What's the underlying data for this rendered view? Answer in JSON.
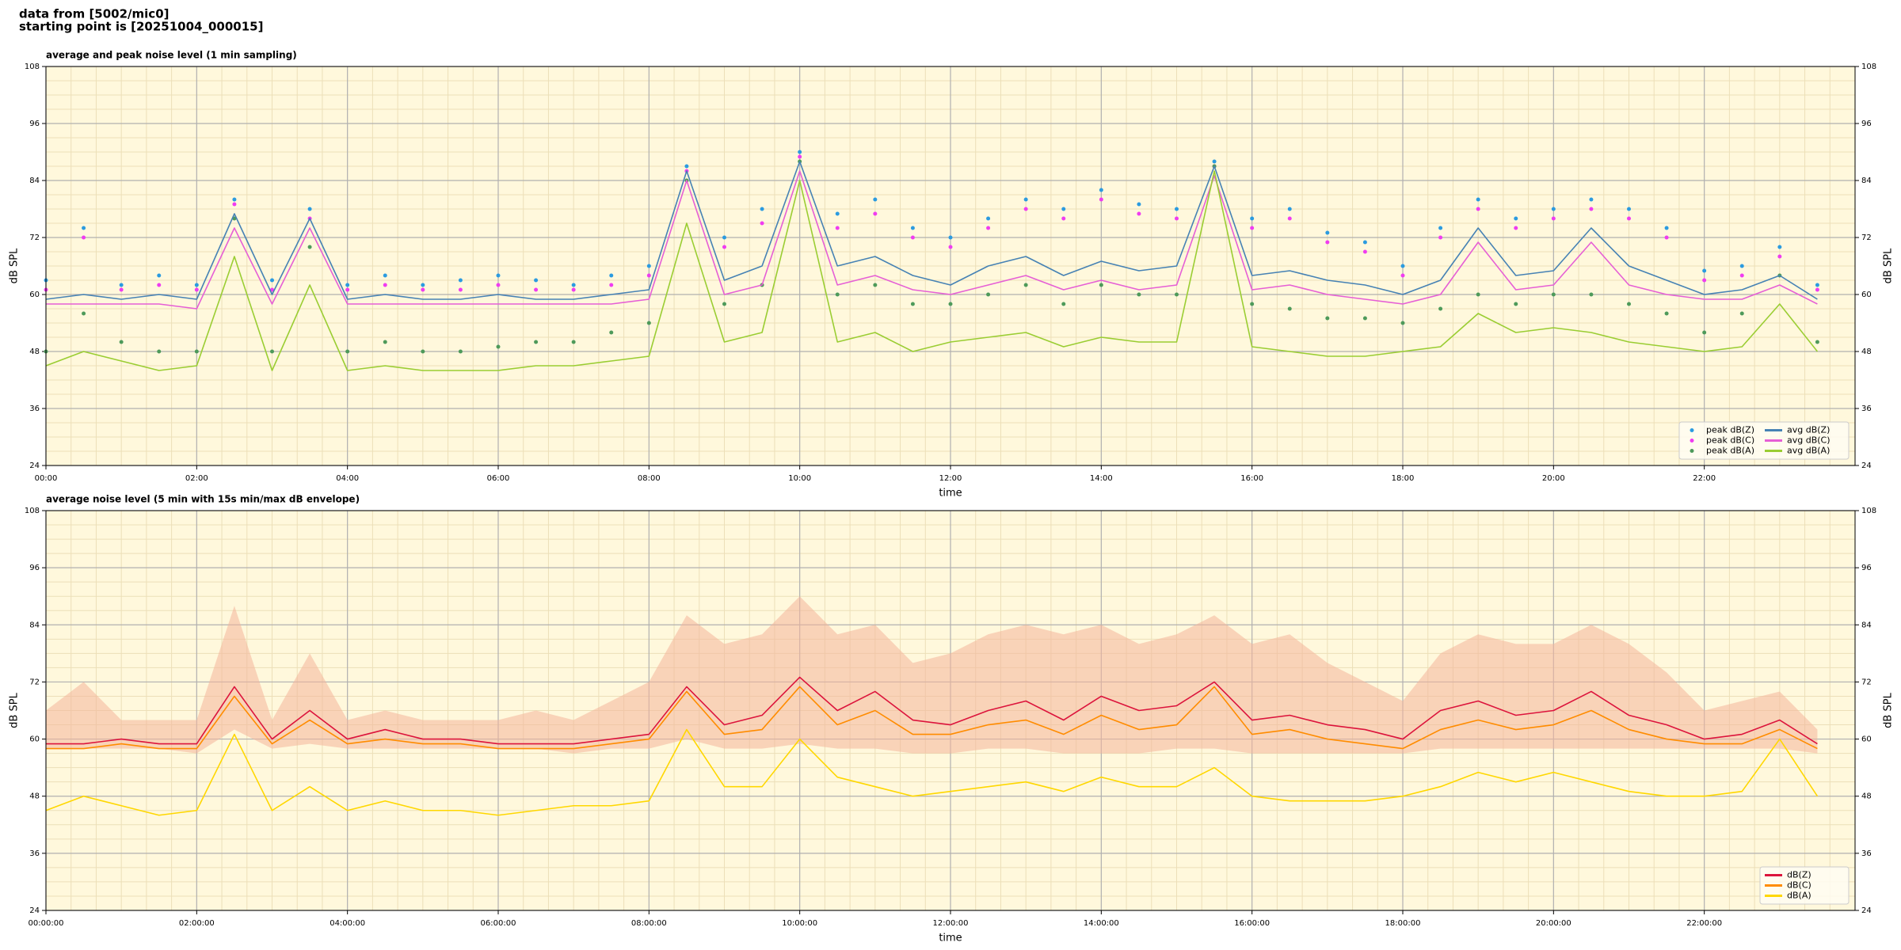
{
  "title": [
    "data from [5002/mic0]",
    "starting point is [20251004_000015]"
  ],
  "chart_data": [
    {
      "type": "line",
      "title": "average and peak noise level (1 min sampling)",
      "xlabel": "time",
      "ylabel": "dB SPL",
      "xlim": [
        0,
        24
      ],
      "ylim": [
        24,
        108
      ],
      "yticks": [
        24,
        36,
        48,
        60,
        72,
        84,
        96,
        108
      ],
      "xticks": [
        {
          "value": 0,
          "label": "00:00"
        },
        {
          "value": 2,
          "label": "02:00"
        },
        {
          "value": 4,
          "label": "04:00"
        },
        {
          "value": 6,
          "label": "06:00"
        },
        {
          "value": 8,
          "label": "08:00"
        },
        {
          "value": 10,
          "label": "10:00"
        },
        {
          "value": 12,
          "label": "12:00"
        },
        {
          "value": 14,
          "label": "14:00"
        },
        {
          "value": 16,
          "label": "16:00"
        },
        {
          "value": 18,
          "label": "18:00"
        },
        {
          "value": 20,
          "label": "20:00"
        },
        {
          "value": 22,
          "label": "22:00"
        }
      ],
      "grid": true,
      "legend": "lower right",
      "legend_ncol": 2,
      "x": [
        0,
        0.5,
        1,
        1.5,
        2,
        2.5,
        3,
        3.5,
        4,
        4.5,
        5,
        5.5,
        6,
        6.5,
        7,
        7.5,
        8,
        8.5,
        9,
        9.5,
        10,
        10.5,
        11,
        11.5,
        12,
        12.5,
        13,
        13.5,
        14,
        14.5,
        15,
        15.5,
        16,
        16.5,
        17,
        17.5,
        18,
        18.5,
        19,
        19.5,
        20,
        20.5,
        21,
        21.5,
        22,
        22.5,
        23,
        23.5
      ],
      "series": [
        {
          "name": "peak dB(Z)",
          "type": "scatter",
          "color": "#2b9be0",
          "values": [
            63,
            74,
            62,
            64,
            62,
            80,
            63,
            78,
            62,
            64,
            62,
            63,
            64,
            63,
            62,
            64,
            66,
            87,
            72,
            78,
            90,
            77,
            80,
            74,
            72,
            76,
            80,
            78,
            82,
            79,
            78,
            88,
            76,
            78,
            73,
            71,
            66,
            74,
            80,
            76,
            78,
            80,
            78,
            74,
            65,
            66,
            70,
            62
          ]
        },
        {
          "name": "peak dB(C)",
          "type": "scatter",
          "color": "#f03cf0",
          "values": [
            61,
            72,
            61,
            62,
            61,
            79,
            61,
            76,
            61,
            62,
            61,
            61,
            62,
            61,
            61,
            62,
            64,
            86,
            70,
            75,
            89,
            74,
            77,
            72,
            70,
            74,
            78,
            76,
            80,
            77,
            76,
            87,
            74,
            76,
            71,
            69,
            64,
            72,
            78,
            74,
            76,
            78,
            76,
            72,
            63,
            64,
            68,
            61
          ]
        },
        {
          "name": "peak dB(A)",
          "type": "scatter",
          "color": "#4e9a5a",
          "values": [
            48,
            56,
            50,
            48,
            48,
            76,
            48,
            70,
            48,
            50,
            48,
            48,
            49,
            50,
            50,
            52,
            54,
            84,
            58,
            62,
            88,
            60,
            62,
            58,
            58,
            60,
            62,
            58,
            62,
            60,
            60,
            87,
            58,
            57,
            55,
            55,
            54,
            57,
            60,
            58,
            60,
            60,
            58,
            56,
            52,
            56,
            64,
            50
          ]
        },
        {
          "name": "avg dB(Z)",
          "type": "line",
          "color": "#4682b4",
          "values": [
            59,
            60,
            59,
            60,
            59,
            77,
            60,
            76,
            59,
            60,
            59,
            59,
            60,
            59,
            59,
            60,
            61,
            86,
            63,
            66,
            88,
            66,
            68,
            64,
            62,
            66,
            68,
            64,
            67,
            65,
            66,
            87,
            64,
            65,
            63,
            62,
            60,
            63,
            74,
            64,
            65,
            74,
            66,
            63,
            60,
            61,
            64,
            59
          ]
        },
        {
          "name": "avg dB(C)",
          "type": "line",
          "color": "#e65fd5",
          "values": [
            58,
            58,
            58,
            58,
            57,
            74,
            58,
            74,
            58,
            58,
            58,
            58,
            58,
            58,
            58,
            58,
            59,
            84,
            60,
            62,
            86,
            62,
            64,
            61,
            60,
            62,
            64,
            61,
            63,
            61,
            62,
            85,
            61,
            62,
            60,
            59,
            58,
            60,
            71,
            61,
            62,
            71,
            62,
            60,
            59,
            59,
            62,
            58
          ]
        },
        {
          "name": "avg dB(A)",
          "type": "line",
          "color": "#9acd32",
          "values": [
            45,
            48,
            46,
            44,
            45,
            68,
            44,
            62,
            44,
            45,
            44,
            44,
            44,
            45,
            45,
            46,
            47,
            75,
            50,
            52,
            84,
            50,
            52,
            48,
            50,
            51,
            52,
            49,
            51,
            50,
            50,
            86,
            49,
            48,
            47,
            47,
            48,
            49,
            56,
            52,
            53,
            52,
            50,
            49,
            48,
            49,
            58,
            48
          ]
        }
      ]
    },
    {
      "type": "line",
      "title": "average noise level (5 min with 15s min/max dB envelope)",
      "xlabel": "time",
      "ylabel": "dB SPL",
      "xlim": [
        0,
        24
      ],
      "ylim": [
        24,
        108
      ],
      "yticks": [
        24,
        36,
        48,
        60,
        72,
        84,
        96,
        108
      ],
      "xticks": [
        {
          "value": 0,
          "label": "00:00:00"
        },
        {
          "value": 2,
          "label": "02:00:00"
        },
        {
          "value": 4,
          "label": "04:00:00"
        },
        {
          "value": 6,
          "label": "06:00:00"
        },
        {
          "value": 8,
          "label": "08:00:00"
        },
        {
          "value": 10,
          "label": "10:00:00"
        },
        {
          "value": 12,
          "label": "12:00:00"
        },
        {
          "value": 14,
          "label": "14:00:00"
        },
        {
          "value": 16,
          "label": "16:00:00"
        },
        {
          "value": 18,
          "label": "18:00:00"
        },
        {
          "value": 20,
          "label": "20:00:00"
        },
        {
          "value": 22,
          "label": "22:00:00"
        }
      ],
      "grid": true,
      "legend": "lower right",
      "legend_ncol": 1,
      "x": [
        0,
        0.5,
        1,
        1.5,
        2,
        2.5,
        3,
        3.5,
        4,
        4.5,
        5,
        5.5,
        6,
        6.5,
        7,
        7.5,
        8,
        8.5,
        9,
        9.5,
        10,
        10.5,
        11,
        11.5,
        12,
        12.5,
        13,
        13.5,
        14,
        14.5,
        15,
        15.5,
        16,
        16.5,
        17,
        17.5,
        18,
        18.5,
        19,
        19.5,
        20,
        20.5,
        21,
        21.5,
        22,
        22.5,
        23,
        23.5
      ],
      "band": {
        "color": "#f4b49a",
        "lower": [
          58,
          58,
          58,
          58,
          57,
          62,
          58,
          59,
          58,
          58,
          58,
          58,
          58,
          58,
          57,
          58,
          58,
          60,
          58,
          58,
          59,
          58,
          58,
          57,
          57,
          58,
          58,
          57,
          57,
          57,
          58,
          58,
          57,
          57,
          57,
          57,
          57,
          58,
          58,
          58,
          58,
          58,
          58,
          58,
          58,
          58,
          58,
          57
        ],
        "upper": [
          66,
          72,
          64,
          64,
          64,
          88,
          64,
          78,
          64,
          66,
          64,
          64,
          64,
          66,
          64,
          68,
          72,
          86,
          80,
          82,
          90,
          82,
          84,
          76,
          78,
          82,
          84,
          82,
          84,
          80,
          82,
          86,
          80,
          82,
          76,
          72,
          68,
          78,
          82,
          80,
          80,
          84,
          80,
          74,
          66,
          68,
          70,
          62
        ]
      },
      "series": [
        {
          "name": "dB(Z)",
          "type": "line",
          "color": "#dc143c",
          "values": [
            59,
            59,
            60,
            59,
            59,
            71,
            60,
            66,
            60,
            62,
            60,
            60,
            59,
            59,
            59,
            60,
            61,
            71,
            63,
            65,
            73,
            66,
            70,
            64,
            63,
            66,
            68,
            64,
            69,
            66,
            67,
            72,
            64,
            65,
            63,
            62,
            60,
            66,
            68,
            65,
            66,
            70,
            65,
            63,
            60,
            61,
            64,
            59
          ]
        },
        {
          "name": "dB(C)",
          "type": "line",
          "color": "#ff8c00",
          "values": [
            58,
            58,
            59,
            58,
            58,
            69,
            59,
            64,
            59,
            60,
            59,
            59,
            58,
            58,
            58,
            59,
            60,
            70,
            61,
            62,
            71,
            63,
            66,
            61,
            61,
            63,
            64,
            61,
            65,
            62,
            63,
            71,
            61,
            62,
            60,
            59,
            58,
            62,
            64,
            62,
            63,
            66,
            62,
            60,
            59,
            59,
            62,
            58
          ]
        },
        {
          "name": "dB(A)",
          "type": "line",
          "color": "#ffd700",
          "values": [
            45,
            48,
            46,
            44,
            45,
            61,
            45,
            50,
            45,
            47,
            45,
            45,
            44,
            45,
            46,
            46,
            47,
            62,
            50,
            50,
            60,
            52,
            50,
            48,
            49,
            50,
            51,
            49,
            52,
            50,
            50,
            54,
            48,
            47,
            47,
            47,
            48,
            50,
            53,
            51,
            53,
            51,
            49,
            48,
            48,
            49,
            60,
            48
          ]
        }
      ]
    }
  ]
}
